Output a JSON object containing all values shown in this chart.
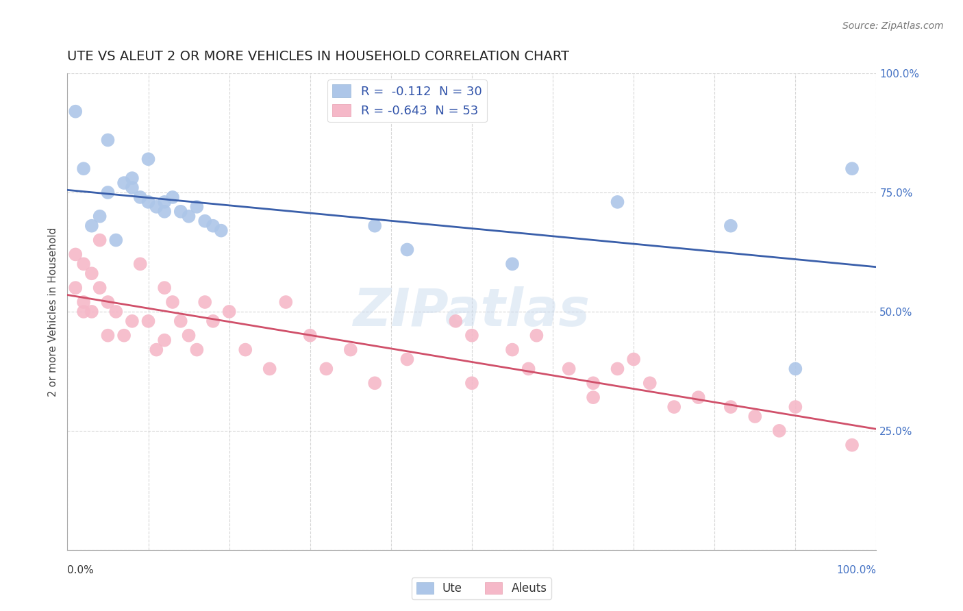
{
  "title": "UTE VS ALEUT 2 OR MORE VEHICLES IN HOUSEHOLD CORRELATION CHART",
  "source": "Source: ZipAtlas.com",
  "ylabel": "2 or more Vehicles in Household",
  "watermark_text": "ZIPatlas",
  "legend_ute": "R =  -0.112  N = 30",
  "legend_aleut": "R = -0.643  N = 53",
  "ute_color": "#adc6e8",
  "aleut_color": "#f5b8c8",
  "ute_line_color": "#3a5faa",
  "aleut_line_color": "#d0506a",
  "background_color": "#ffffff",
  "grid_color": "#cccccc",
  "ute_points": [
    [
      1,
      92
    ],
    [
      5,
      86
    ],
    [
      2,
      80
    ],
    [
      8,
      78
    ],
    [
      10,
      82
    ],
    [
      5,
      75
    ],
    [
      7,
      77
    ],
    [
      8,
      76
    ],
    [
      9,
      74
    ],
    [
      10,
      73
    ],
    [
      11,
      72
    ],
    [
      12,
      73
    ],
    [
      12,
      71
    ],
    [
      13,
      74
    ],
    [
      14,
      71
    ],
    [
      15,
      70
    ],
    [
      16,
      72
    ],
    [
      17,
      69
    ],
    [
      18,
      68
    ],
    [
      19,
      67
    ],
    [
      3,
      68
    ],
    [
      4,
      70
    ],
    [
      6,
      65
    ],
    [
      38,
      68
    ],
    [
      42,
      63
    ],
    [
      68,
      73
    ],
    [
      82,
      68
    ],
    [
      97,
      80
    ],
    [
      55,
      60
    ],
    [
      90,
      38
    ]
  ],
  "aleut_points": [
    [
      1,
      62
    ],
    [
      1,
      55
    ],
    [
      2,
      60
    ],
    [
      2,
      50
    ],
    [
      3,
      58
    ],
    [
      4,
      65
    ],
    [
      4,
      55
    ],
    [
      5,
      52
    ],
    [
      6,
      50
    ],
    [
      7,
      45
    ],
    [
      8,
      48
    ],
    [
      9,
      60
    ],
    [
      10,
      48
    ],
    [
      11,
      42
    ],
    [
      12,
      55
    ],
    [
      12,
      44
    ],
    [
      13,
      52
    ],
    [
      14,
      48
    ],
    [
      15,
      45
    ],
    [
      16,
      42
    ],
    [
      17,
      52
    ],
    [
      18,
      48
    ],
    [
      2,
      52
    ],
    [
      3,
      50
    ],
    [
      5,
      45
    ],
    [
      20,
      50
    ],
    [
      22,
      42
    ],
    [
      25,
      38
    ],
    [
      27,
      52
    ],
    [
      30,
      45
    ],
    [
      32,
      38
    ],
    [
      35,
      42
    ],
    [
      38,
      35
    ],
    [
      42,
      40
    ],
    [
      48,
      48
    ],
    [
      50,
      45
    ],
    [
      50,
      35
    ],
    [
      55,
      42
    ],
    [
      57,
      38
    ],
    [
      58,
      45
    ],
    [
      62,
      38
    ],
    [
      65,
      35
    ],
    [
      65,
      32
    ],
    [
      68,
      38
    ],
    [
      70,
      40
    ],
    [
      72,
      35
    ],
    [
      75,
      30
    ],
    [
      78,
      32
    ],
    [
      82,
      30
    ],
    [
      85,
      28
    ],
    [
      88,
      25
    ],
    [
      90,
      30
    ],
    [
      97,
      22
    ]
  ],
  "xlim": [
    0,
    100
  ],
  "ylim": [
    0,
    100
  ],
  "right_ytick_positions": [
    25,
    50,
    75,
    100
  ],
  "right_ytick_labels": [
    "25.0%",
    "50.0%",
    "75.0%",
    "100.0%"
  ],
  "title_fontsize": 14,
  "axis_fontsize": 11,
  "legend_fontsize": 13,
  "source_fontsize": 10
}
